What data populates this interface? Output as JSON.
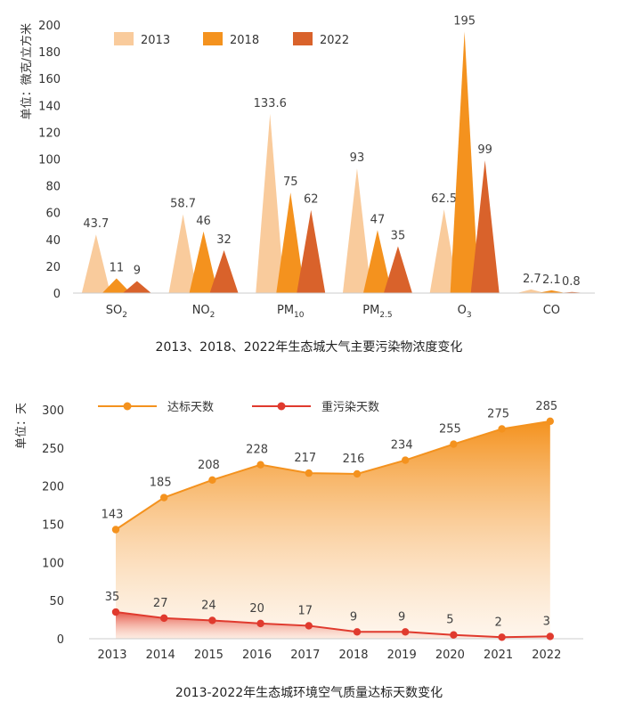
{
  "chart_data": [
    {
      "type": "bar",
      "title": "2013、2018、2022年生态城大气主要污染物浓度变化",
      "ylabel": "单位：微克/立方米",
      "ylim": [
        0,
        200
      ],
      "yticks": [
        "0",
        "20",
        "40",
        "60",
        "80",
        "100",
        "120",
        "140",
        "160",
        "180",
        "200"
      ],
      "grid": false,
      "legend_position": "top-left",
      "categories": [
        "SO2",
        "NO2",
        "PM10",
        "PM2.5",
        "O3",
        "CO"
      ],
      "category_labels": [
        {
          "base": "SO",
          "sub": "2"
        },
        {
          "base": "NO",
          "sub": "2"
        },
        {
          "base": "PM",
          "sub": "10"
        },
        {
          "base": "PM",
          "sub": "2.5"
        },
        {
          "base": "O",
          "sub": "3"
        },
        {
          "base": "CO",
          "sub": ""
        }
      ],
      "series": [
        {
          "name": "2013",
          "color": "#F9CB9C",
          "values": [
            43.7,
            58.7,
            133.6,
            93,
            62.5,
            2.7
          ],
          "labels": [
            "43.7",
            "58.7",
            "133.6",
            "93",
            "62.5",
            "2.7"
          ]
        },
        {
          "name": "2018",
          "color": "#F4921E",
          "values": [
            11,
            46,
            75,
            47,
            195,
            2.1
          ],
          "labels": [
            "11",
            "46",
            "75",
            "47",
            "195",
            "2.1"
          ]
        },
        {
          "name": "2022",
          "color": "#D9622B",
          "values": [
            9,
            32,
            62,
            35,
            99,
            0.8
          ],
          "labels": [
            "9",
            "32",
            "62",
            "35",
            "99",
            "0.8"
          ]
        }
      ]
    },
    {
      "type": "line",
      "title": "2013-2022年生态城环境空气质量达标天数变化",
      "ylabel": "单位：天",
      "ylim": [
        0,
        300
      ],
      "yticks": [
        "0",
        "50",
        "100",
        "150",
        "200",
        "250",
        "300"
      ],
      "grid": false,
      "legend_position": "top",
      "x": [
        "2013",
        "2014",
        "2015",
        "2016",
        "2017",
        "2018",
        "2019",
        "2020",
        "2021",
        "2022"
      ],
      "series": [
        {
          "name": "达标天数",
          "color": "#F4921E",
          "values": [
            143,
            185,
            208,
            228,
            217,
            216,
            234,
            255,
            275,
            285
          ],
          "labels": [
            "143",
            "185",
            "208",
            "228",
            "217",
            "216",
            "234",
            "255",
            "275",
            "285"
          ]
        },
        {
          "name": "重污染天数",
          "color": "#E03A2E",
          "values": [
            35,
            27,
            24,
            20,
            17,
            9,
            9,
            5,
            2,
            3
          ],
          "labels": [
            "35",
            "27",
            "24",
            "20",
            "17",
            "9",
            "9",
            "5",
            "2",
            "3"
          ]
        }
      ]
    }
  ]
}
